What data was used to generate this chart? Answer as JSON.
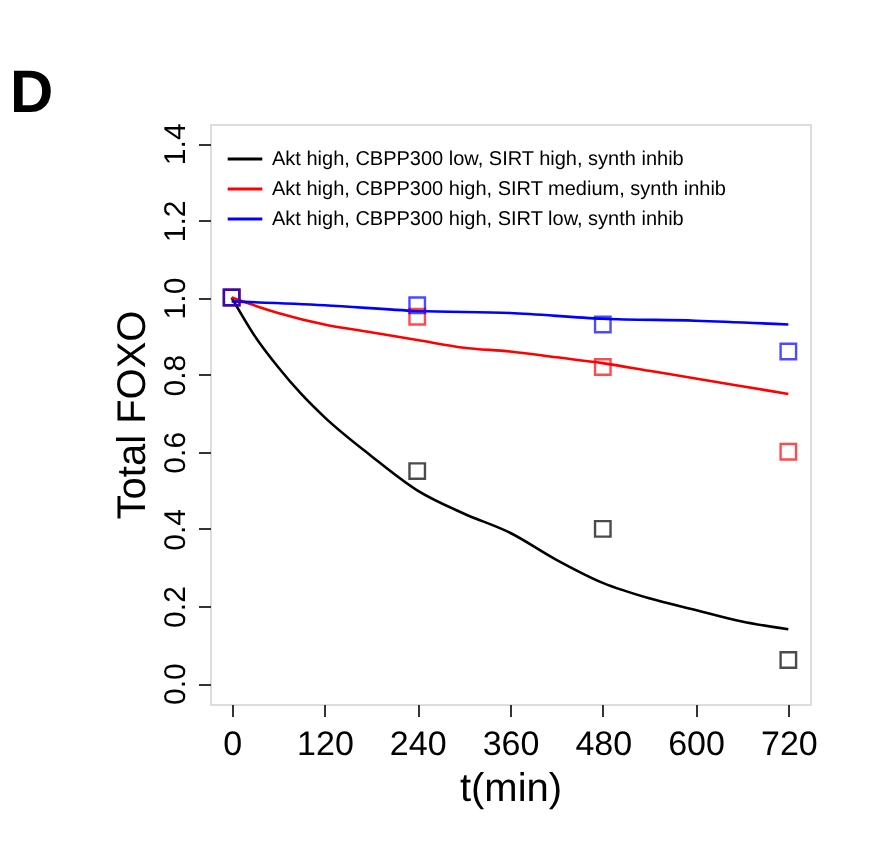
{
  "chart_data": {
    "type": "line",
    "xlabel": "t(min)",
    "ylabel": "Total FOXO",
    "annotations": [
      "D"
    ],
    "xlim": [
      -28,
      748
    ],
    "ylim": [
      -0.054,
      1.45
    ],
    "xticks": [
      0,
      120,
      240,
      360,
      480,
      600,
      720
    ],
    "yticks": [
      {
        "value": 0,
        "label": "0.0"
      },
      {
        "value": 0.2,
        "label": "0.2"
      },
      {
        "value": 0.4,
        "label": "0.4"
      },
      {
        "value": 0.6,
        "label": "0.6"
      },
      {
        "value": 0.8,
        "label": "0.8"
      },
      {
        "value": 1,
        "label": "1.0"
      },
      {
        "value": 1.2,
        "label": "1.2"
      },
      {
        "value": 1.4,
        "label": "1.4"
      }
    ],
    "grid": false,
    "legend": "top left",
    "series": [
      {
        "type": "line",
        "name": "Akt high, CBPP300 low, SIRT high, synth inhib",
        "color": "#000000",
        "x": [
          0,
          30,
          60,
          90,
          120,
          180,
          240,
          300,
          360,
          420,
          480,
          540,
          600,
          660,
          720
        ],
        "values": [
          1.0,
          0.9,
          0.82,
          0.75,
          0.69,
          0.59,
          0.5,
          0.44,
          0.39,
          0.32,
          0.26,
          0.22,
          0.19,
          0.16,
          0.14
        ]
      },
      {
        "type": "line",
        "name": "Akt high, CBPP300 high, SIRT medium, synth inhib",
        "color": "#ff0000",
        "x": [
          0,
          60,
          120,
          180,
          240,
          300,
          360,
          420,
          480,
          540,
          600,
          660,
          720
        ],
        "values": [
          1.0,
          0.96,
          0.93,
          0.91,
          0.89,
          0.87,
          0.86,
          0.845,
          0.83,
          0.81,
          0.79,
          0.77,
          0.75
        ]
      },
      {
        "type": "line",
        "name": "Akt high, CBPP300 high, SIRT low, synth inhib",
        "color": "#0000ff",
        "x": [
          0,
          120,
          240,
          360,
          480,
          600,
          720
        ],
        "values": [
          0.99,
          0.98,
          0.965,
          0.96,
          0.945,
          0.94,
          0.93
        ]
      },
      {
        "type": "scatter",
        "marker": "square",
        "color": "#000000",
        "x": [
          0,
          240,
          480,
          720
        ],
        "values": [
          1.0,
          0.55,
          0.4,
          0.06
        ]
      },
      {
        "type": "scatter",
        "marker": "square",
        "color": "#ff0000",
        "x": [
          0,
          240,
          480,
          720
        ],
        "values": [
          1.0,
          0.95,
          0.82,
          0.6
        ]
      },
      {
        "type": "scatter",
        "marker": "square",
        "color": "#0000ff",
        "x": [
          0,
          240,
          480,
          720
        ],
        "values": [
          1.0,
          0.98,
          0.93,
          0.86
        ]
      }
    ]
  }
}
